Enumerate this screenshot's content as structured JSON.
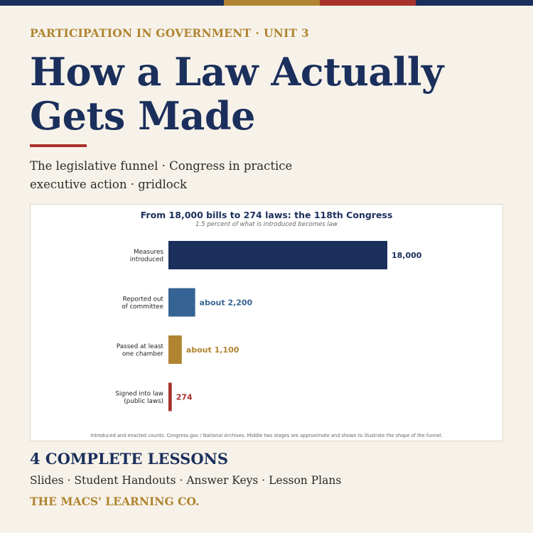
{
  "colors": {
    "navy": "#1b2f5c",
    "blue": "#356393",
    "gold": "#b08430",
    "red": "#a8312b",
    "cream": "#f7f2e9"
  },
  "header": {
    "eyebrow_course": "PARTICIPATION IN GOVERNMENT",
    "eyebrow_separator": "·",
    "eyebrow_unit": "UNIT 3",
    "title_line1": "How a Law Actually",
    "title_line2": "Gets Made",
    "subtitle_line1": "The legislative funnel · Congress in practice",
    "subtitle_line2": "executive action · gridlock"
  },
  "chart_data": {
    "type": "bar",
    "orientation": "horizontal",
    "title": "From 18,000 bills to 274 laws: the 118th Congress",
    "subtitle": "1.5 percent of what is introduced becomes law",
    "categories": [
      [
        "Measures",
        "introduced"
      ],
      [
        "Reported out",
        "of committee"
      ],
      [
        "Passed at least",
        "one chamber"
      ],
      [
        "Signed into law",
        "(public laws)"
      ]
    ],
    "values": [
      18000,
      2200,
      1100,
      274
    ],
    "value_labels": [
      "18,000",
      "about 2,200",
      "about 1,100",
      "274"
    ],
    "bar_colors": [
      "#1b2f5c",
      "#356393",
      "#b08430",
      "#a8312b"
    ],
    "xlim": [
      0,
      18000
    ],
    "grid": false,
    "source_note": "Introduced and enacted counts: Congress.gov / National Archives. Middle two stages are approximate and shown to illustrate the shape of the funnel."
  },
  "footer": {
    "lessons": "4 COMPLETE LESSONS",
    "materials": "Slides · Student Handouts · Answer Keys · Lesson Plans",
    "brand": "THE MACS' LEARNING CO."
  }
}
